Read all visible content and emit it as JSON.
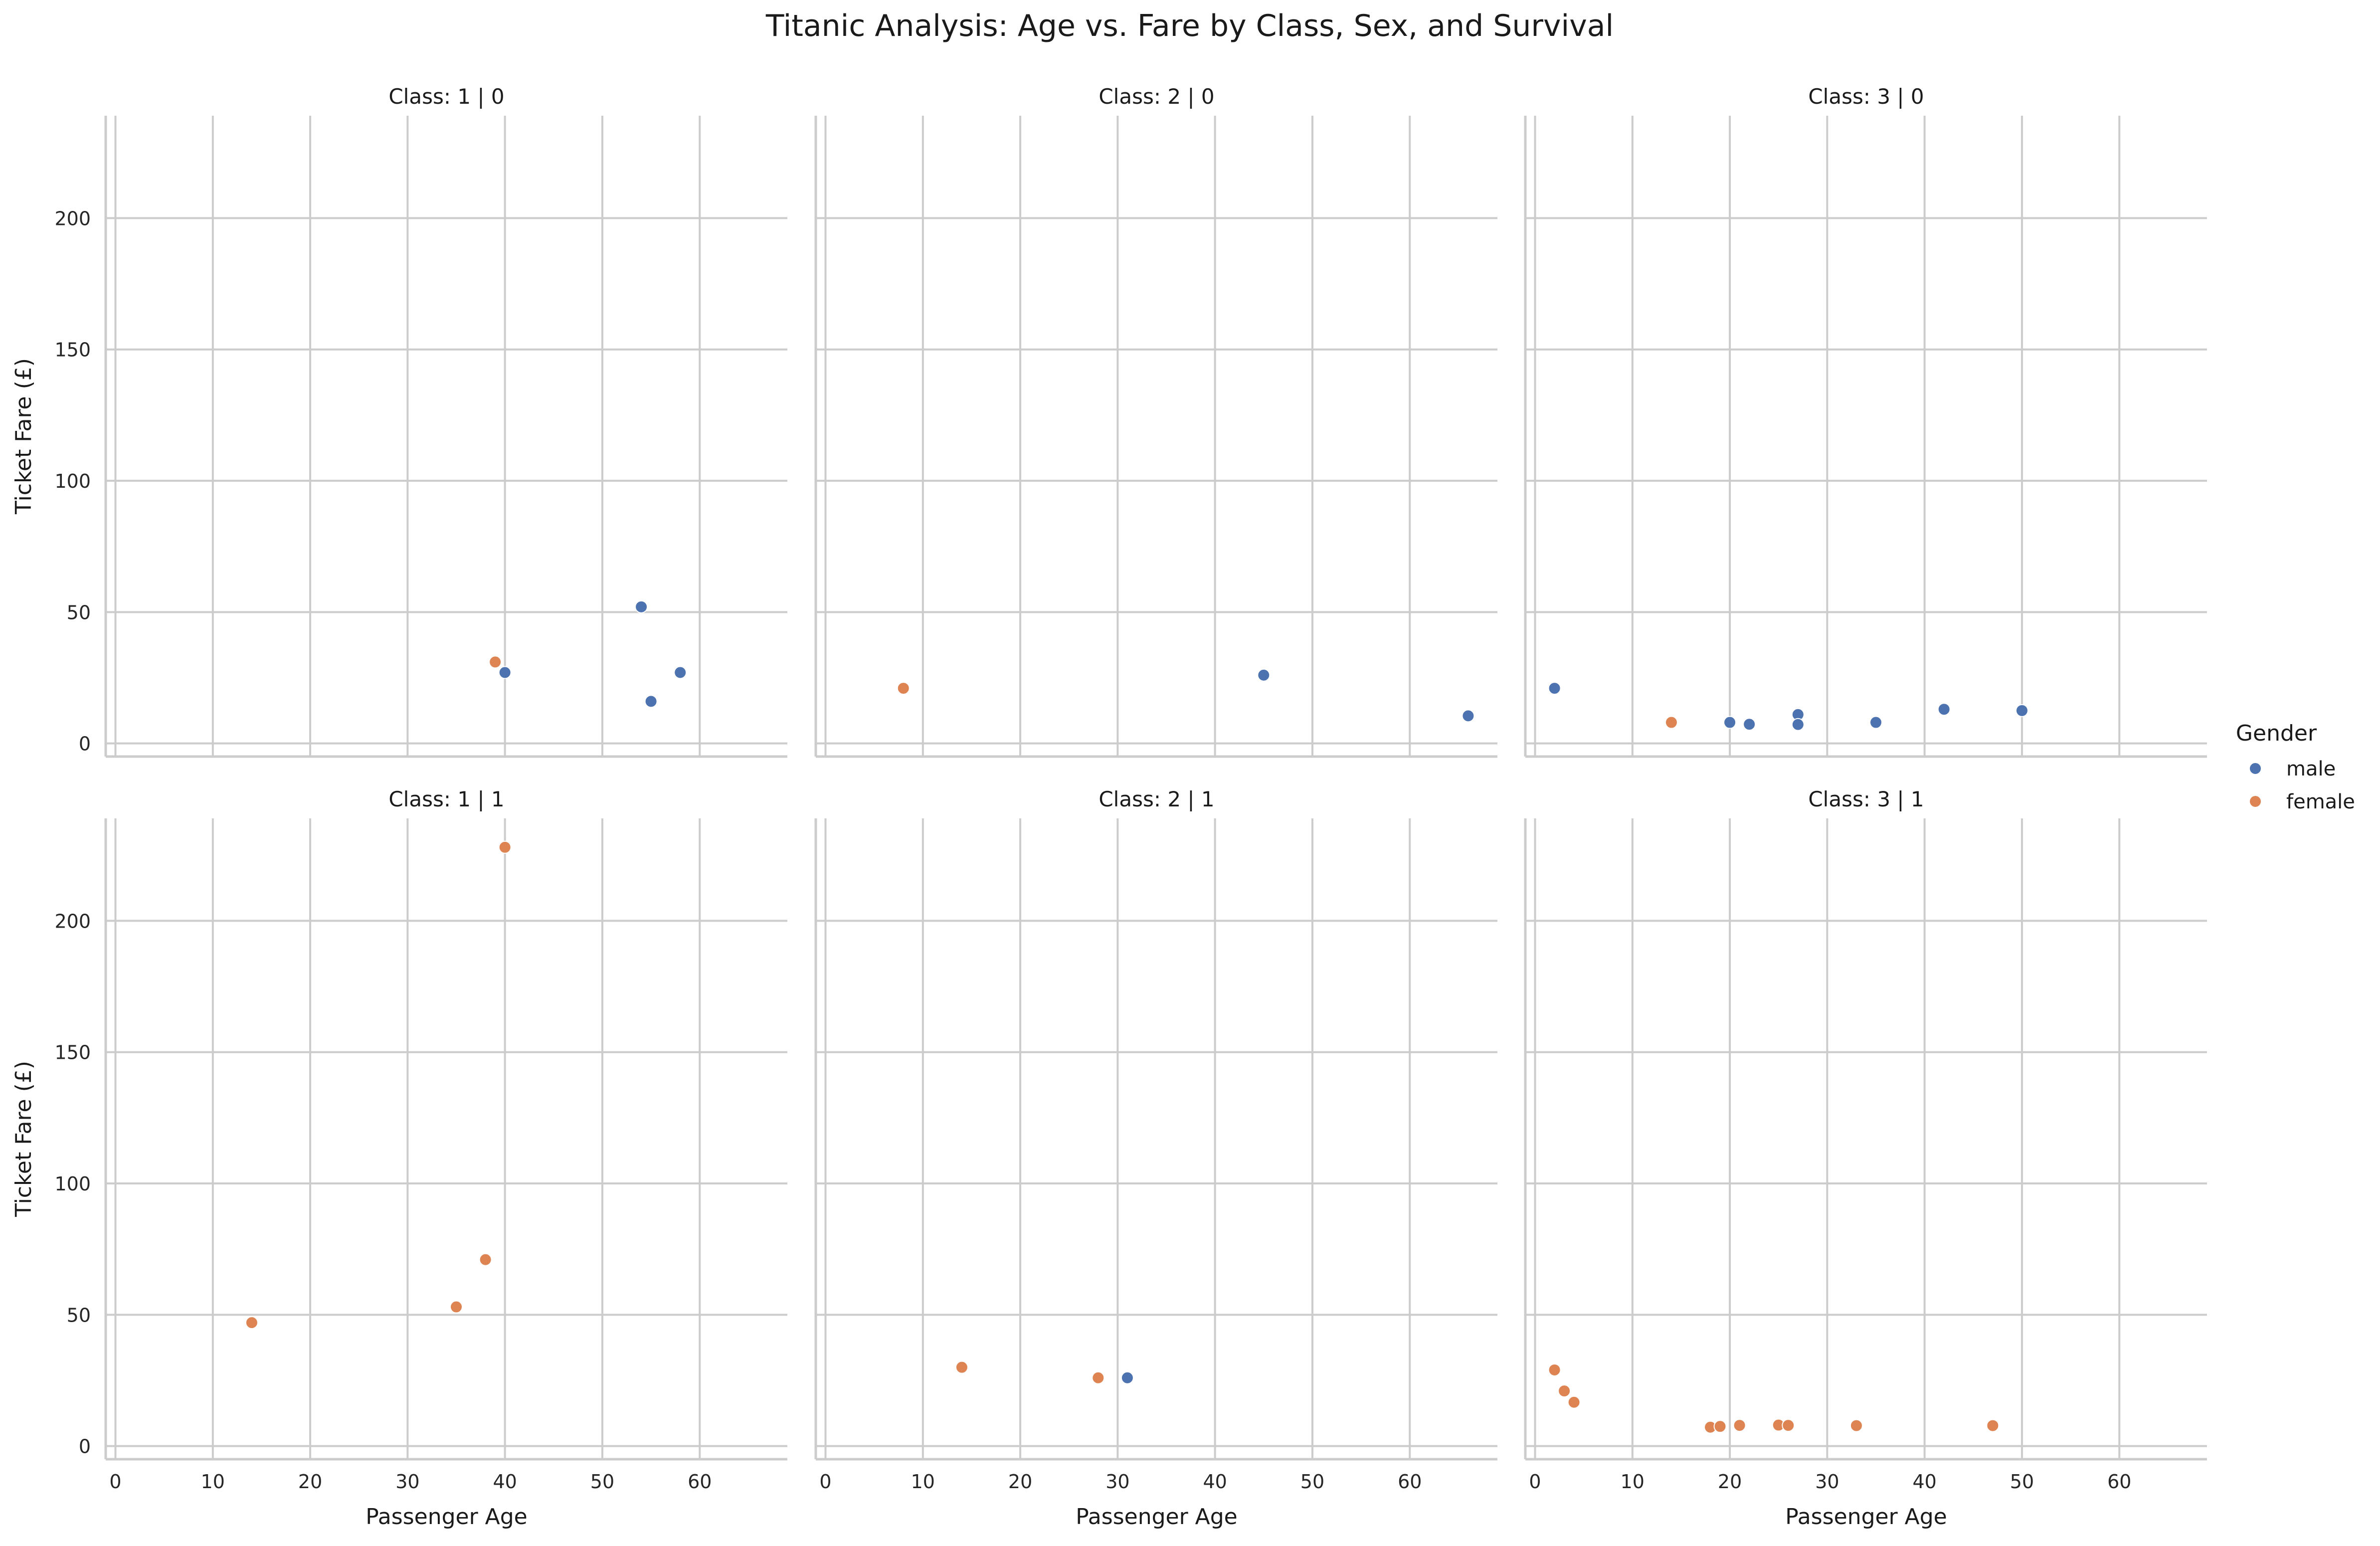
{
  "chart_data": {
    "type": "scatter",
    "title": "Titanic Analysis: Age vs. Fare by Class, Sex, and Survival",
    "xlabel": "Passenger Age",
    "ylabel": "Ticket Fare (£)",
    "xlim": [
      -1,
      69
    ],
    "ylim": [
      -5,
      239
    ],
    "xticks": [
      0,
      10,
      20,
      30,
      40,
      50,
      60
    ],
    "yticks": [
      0,
      50,
      100,
      150,
      200
    ],
    "grid": true,
    "legend": {
      "title": "Gender",
      "position": "right",
      "entries": [
        {
          "name": "male",
          "color": "#4c72b0"
        },
        {
          "name": "female",
          "color": "#dd8452"
        }
      ]
    },
    "panels": [
      {
        "title": "Class: 1 | 0",
        "points": [
          {
            "x": 39,
            "y": 31,
            "sex": "female"
          },
          {
            "x": 40,
            "y": 27,
            "sex": "male"
          },
          {
            "x": 54,
            "y": 52,
            "sex": "male"
          },
          {
            "x": 55,
            "y": 16,
            "sex": "male"
          },
          {
            "x": 58,
            "y": 27,
            "sex": "male"
          }
        ]
      },
      {
        "title": "Class: 2 | 0",
        "points": [
          {
            "x": 8,
            "y": 21,
            "sex": "female"
          },
          {
            "x": 45,
            "y": 26,
            "sex": "male"
          },
          {
            "x": 66,
            "y": 10.5,
            "sex": "male"
          }
        ]
      },
      {
        "title": "Class: 3 | 0",
        "points": [
          {
            "x": 2,
            "y": 21,
            "sex": "male"
          },
          {
            "x": 14,
            "y": 8,
            "sex": "female"
          },
          {
            "x": 20,
            "y": 8,
            "sex": "male"
          },
          {
            "x": 22,
            "y": 7.3,
            "sex": "male"
          },
          {
            "x": 27,
            "y": 11,
            "sex": "male"
          },
          {
            "x": 27,
            "y": 7.2,
            "sex": "male"
          },
          {
            "x": 35,
            "y": 8,
            "sex": "male"
          },
          {
            "x": 42,
            "y": 13,
            "sex": "male"
          },
          {
            "x": 50,
            "y": 12.5,
            "sex": "male"
          }
        ]
      },
      {
        "title": "Class: 1 | 1",
        "points": [
          {
            "x": 14,
            "y": 47,
            "sex": "female"
          },
          {
            "x": 35,
            "y": 53,
            "sex": "female"
          },
          {
            "x": 38,
            "y": 71,
            "sex": "female"
          },
          {
            "x": 40,
            "y": 228,
            "sex": "female"
          }
        ]
      },
      {
        "title": "Class: 2 | 1",
        "points": [
          {
            "x": 14,
            "y": 30,
            "sex": "female"
          },
          {
            "x": 28,
            "y": 26,
            "sex": "female"
          },
          {
            "x": 31,
            "y": 26,
            "sex": "male"
          }
        ]
      },
      {
        "title": "Class: 3 | 1",
        "points": [
          {
            "x": 2,
            "y": 29,
            "sex": "female"
          },
          {
            "x": 3,
            "y": 21,
            "sex": "female"
          },
          {
            "x": 4,
            "y": 16.7,
            "sex": "female"
          },
          {
            "x": 18,
            "y": 7.2,
            "sex": "female"
          },
          {
            "x": 19,
            "y": 7.5,
            "sex": "female"
          },
          {
            "x": 21,
            "y": 7.9,
            "sex": "female"
          },
          {
            "x": 25,
            "y": 8,
            "sex": "female"
          },
          {
            "x": 26,
            "y": 7.9,
            "sex": "female"
          },
          {
            "x": 33,
            "y": 7.8,
            "sex": "female"
          },
          {
            "x": 47,
            "y": 7.8,
            "sex": "female"
          }
        ]
      }
    ]
  }
}
